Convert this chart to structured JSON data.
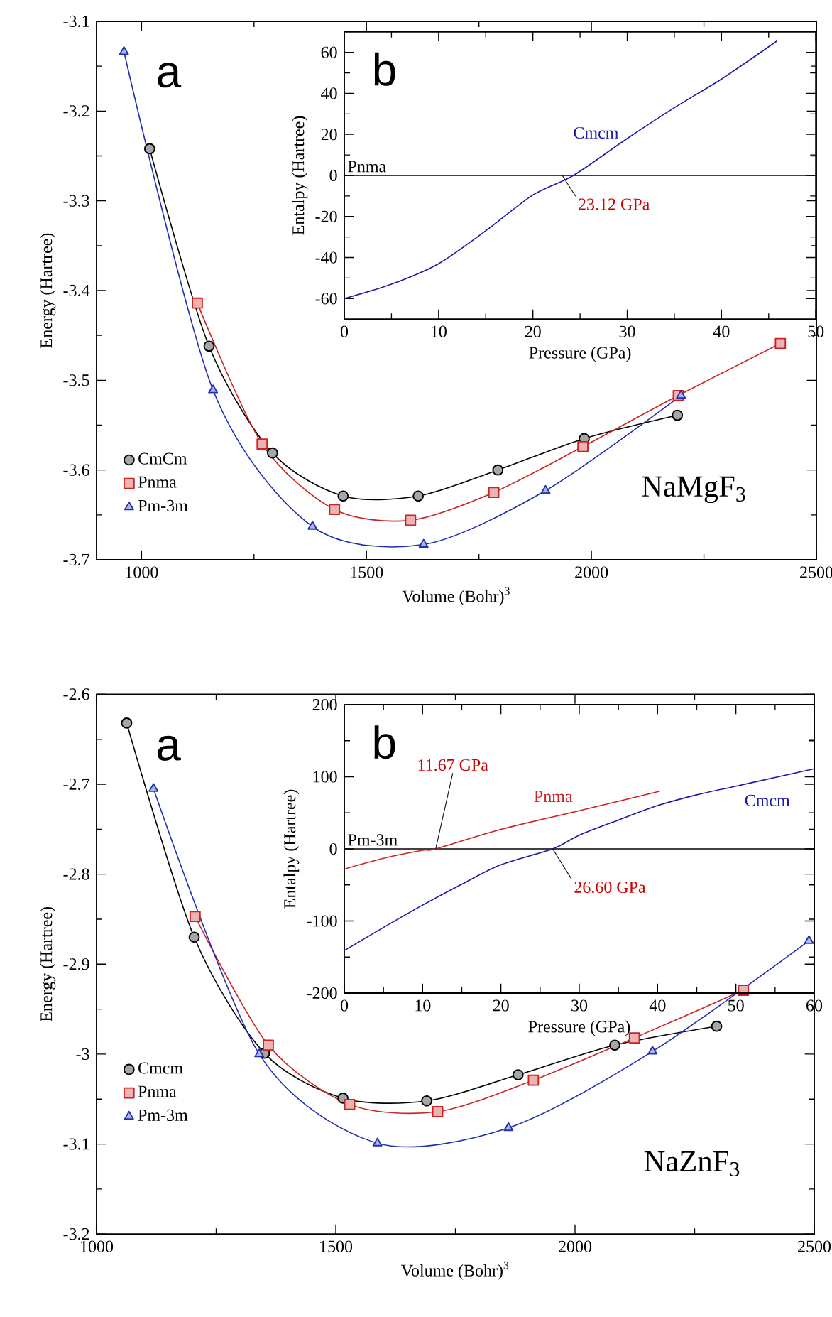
{
  "chart_data": [
    {
      "type": "line",
      "xlabel": "Volume (Bohr)$^{3}$",
      "ylabel": "Energy (Hartree)",
      "annotations": [
        "a",
        "NaMgF$_{3}$"
      ],
      "xlim": [
        900,
        2500
      ],
      "ylim": [
        -3.7,
        -3.1
      ],
      "xticks": [
        1000,
        {
          "value": 1250,
          "label": null
        },
        1500,
        {
          "value": 1750,
          "label": null
        },
        2000,
        {
          "value": 2250,
          "label": null
        },
        2500
      ],
      "yticks": [
        -3.1,
        {
          "value": -3.15,
          "label": null
        },
        -3.2,
        {
          "value": -3.25,
          "label": null
        },
        -3.3,
        {
          "value": -3.35,
          "label": null
        },
        -3.4,
        {
          "value": -3.45,
          "label": null
        },
        -3.5,
        {
          "value": -3.55,
          "label": null
        },
        -3.6,
        {
          "value": -3.65,
          "label": null
        },
        -3.7
      ],
      "legend": "bottom left",
      "series": [
        {
          "name": "CmCm",
          "color": "#000000",
          "marker": "circle",
          "x": [
            1018,
            1150,
            1291,
            1448,
            1615,
            1792,
            1984,
            2191
          ],
          "values": [
            -3.242,
            -3.462,
            -3.581,
            -3.629,
            -3.629,
            -3.6,
            -3.565,
            -3.539
          ]
        },
        {
          "name": "Pnma",
          "color": "#cc2222",
          "marker": "square",
          "x": [
            1124,
            1268,
            1429,
            1598,
            1783,
            1981,
            2193,
            2420
          ],
          "values": [
            -3.414,
            -3.571,
            -3.644,
            -3.656,
            -3.625,
            -3.574,
            -3.517,
            -3.459
          ]
        },
        {
          "name": "Pm-3m",
          "color": "#2030b0",
          "marker": "triangle",
          "x": [
            961,
            1159,
            1380,
            1627,
            1898,
            2199
          ],
          "values": [
            -3.134,
            -3.511,
            -3.663,
            -3.683,
            -3.623,
            -3.517
          ]
        }
      ]
    },
    {
      "type": "line",
      "xlabel": "Pressure (GPa)",
      "ylabel": "Entalpy (Hartree)",
      "annotations": [
        "b",
        {
          "text": "23.12 GPa",
          "x": 23.12,
          "y": 0
        }
      ],
      "xlim": [
        0,
        50
      ],
      "ylim": [
        -70,
        70
      ],
      "xticks": [
        0,
        {
          "value": 5,
          "label": null
        },
        10,
        {
          "value": 15,
          "label": null
        },
        20,
        {
          "value": 25,
          "label": null
        },
        30,
        {
          "value": 35,
          "label": null
        },
        40,
        {
          "value": 45,
          "label": null
        },
        50
      ],
      "yticks": [
        -60,
        {
          "value": -50,
          "label": null
        },
        -40,
        {
          "value": -30,
          "label": null
        },
        -20,
        {
          "value": -10,
          "label": null
        },
        0,
        {
          "value": 10,
          "label": null
        },
        20,
        {
          "value": 30,
          "label": null
        },
        40,
        {
          "value": 50,
          "label": null
        },
        60
      ],
      "ref_lines": [
        {
          "axis": "y",
          "value": 0,
          "label": "Pnma"
        }
      ],
      "series": [
        {
          "name": "Cmcm",
          "color": "#1a1aa8",
          "x": [
            0,
            5,
            10,
            15,
            20,
            24.3,
            30,
            35,
            40,
            45.9
          ],
          "values": [
            -60,
            -53,
            -43,
            -27,
            -9.5,
            0,
            18,
            33,
            47,
            65.6
          ]
        }
      ]
    },
    {
      "type": "line",
      "xlabel": "Volume (Bohr)$^{3}$",
      "ylabel": "Energy (Hartree)",
      "annotations": [
        "a",
        "NaZnF$_{3}$"
      ],
      "xlim": [
        1000,
        2500
      ],
      "ylim": [
        -3.2,
        -2.6
      ],
      "xticks": [
        1000,
        {
          "value": 1250,
          "label": null
        },
        1500,
        {
          "value": 1750,
          "label": null
        },
        2000,
        {
          "value": 2250,
          "label": null
        },
        2500
      ],
      "yticks": [
        -2.6,
        {
          "value": -2.65,
          "label": null
        },
        -2.7,
        {
          "value": -2.75,
          "label": null
        },
        -2.8,
        {
          "value": -2.85,
          "label": null
        },
        -2.9,
        {
          "value": -2.95,
          "label": null
        },
        -3,
        {
          "value": -3.05,
          "label": null
        },
        -3.1,
        {
          "value": -3.15,
          "label": null
        },
        -3.2
      ],
      "legend": "left",
      "series": [
        {
          "name": "Cmcm",
          "color": "#000000",
          "marker": "circle",
          "x": [
            1063,
            1204,
            1351,
            1515,
            1690,
            1881,
            2083,
            2296
          ],
          "values": [
            -2.632,
            -2.87,
            -2.999,
            -3.049,
            -3.052,
            -3.023,
            -2.99,
            -2.969
          ]
        },
        {
          "name": "Pnma",
          "color": "#cc2222",
          "marker": "square",
          "x": [
            1206,
            1359,
            1529,
            1713,
            1913,
            2124,
            2352
          ],
          "values": [
            -2.847,
            -2.99,
            -3.056,
            -3.064,
            -3.029,
            -2.982,
            -2.929
          ]
        },
        {
          "name": "Pm-3m",
          "color": "#2030b0",
          "marker": "triangle",
          "x": [
            1119,
            1340,
            1587,
            1861,
            2162,
            2489
          ],
          "values": [
            -2.705,
            -3.0,
            -3.099,
            -3.082,
            -2.997,
            -2.874
          ]
        }
      ]
    },
    {
      "type": "line",
      "xlabel": "Pressure (GPa)",
      "ylabel": "Entalpy (Hartree)",
      "annotations": [
        "b",
        {
          "text": "11.67 GPa",
          "x": 11.67,
          "y": 0
        },
        {
          "text": "26.60 GPa",
          "x": 26.6,
          "y": 0
        }
      ],
      "xlim": [
        0,
        60
      ],
      "ylim": [
        -200,
        200
      ],
      "xticks": [
        0,
        {
          "value": 5,
          "label": null
        },
        10,
        {
          "value": 15,
          "label": null
        },
        20,
        {
          "value": 25,
          "label": null
        },
        30,
        {
          "value": 35,
          "label": null
        },
        40,
        {
          "value": 45,
          "label": null
        },
        50,
        {
          "value": 55,
          "label": null
        },
        60
      ],
      "yticks": [
        -200,
        {
          "value": -150,
          "label": null
        },
        -100,
        {
          "value": -50,
          "label": null
        },
        0,
        {
          "value": 50,
          "label": null
        },
        100,
        {
          "value": 150,
          "label": null
        },
        200
      ],
      "ref_lines": [
        {
          "axis": "y",
          "value": 0,
          "label": "Pm-3m"
        }
      ],
      "series": [
        {
          "name": "Pnma",
          "color": "#d02020",
          "x": [
            0,
            5,
            10,
            11.67,
            20,
            30,
            40.3
          ],
          "values": [
            -28,
            -13,
            -2,
            0,
            27,
            53,
            80
          ]
        },
        {
          "name": "Cmcm",
          "color": "#1a1aa8",
          "x": [
            0,
            5,
            10,
            15,
            20,
            26.6,
            30,
            35,
            40,
            45,
            50,
            55,
            60
          ],
          "values": [
            -141,
            -109,
            -78,
            -49,
            -22,
            0,
            19,
            40,
            60,
            75,
            87,
            99,
            111
          ]
        }
      ]
    }
  ]
}
